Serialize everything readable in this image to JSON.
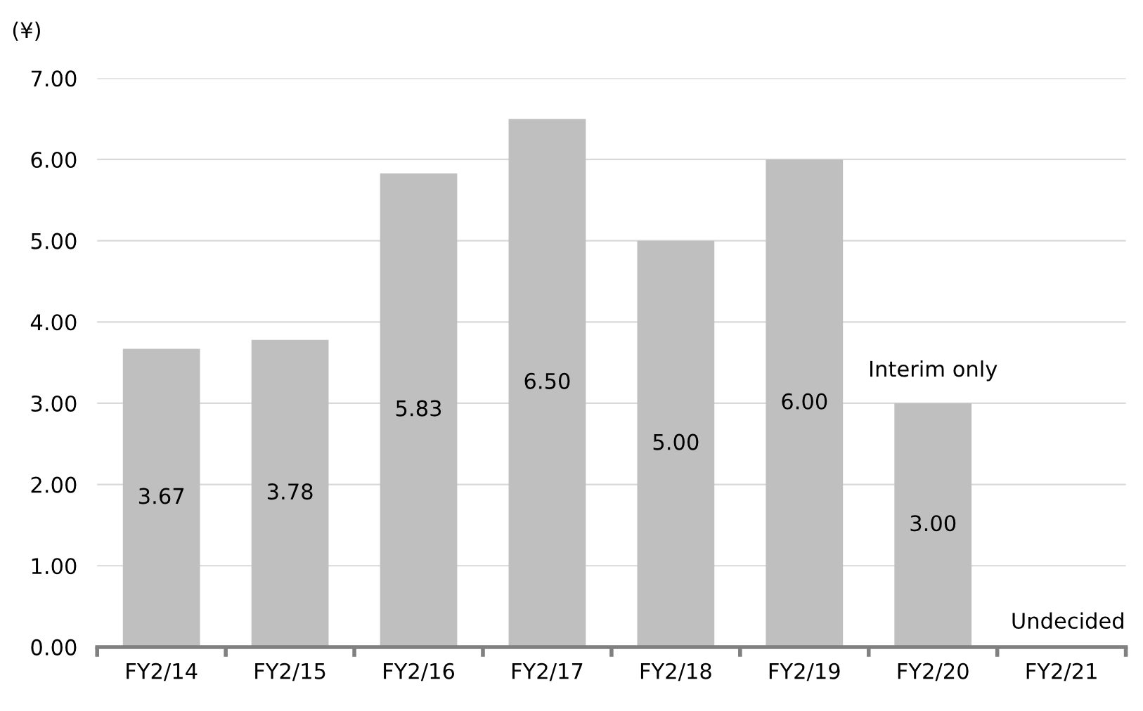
{
  "chart_data": {
    "type": "bar",
    "ylabel": "(¥)",
    "categories": [
      "FY2/14",
      "FY2/15",
      "FY2/16",
      "FY2/17",
      "FY2/18",
      "FY2/19",
      "FY2/20",
      "FY2/21"
    ],
    "values": [
      3.67,
      3.78,
      5.83,
      6.5,
      5.0,
      6.0,
      3.0,
      null
    ],
    "value_labels": [
      "3.67",
      "3.78",
      "5.83",
      "6.50",
      "5.00",
      "6.00",
      "3.00",
      null
    ],
    "color": "#bfbfbf",
    "ylim": [
      0,
      7
    ],
    "yticks": [
      {
        "value": 0,
        "label": "0.00"
      },
      {
        "value": 1,
        "label": "1.00"
      },
      {
        "value": 2,
        "label": "2.00"
      },
      {
        "value": 3,
        "label": "3.00"
      },
      {
        "value": 4,
        "label": "4.00"
      },
      {
        "value": 5,
        "label": "5.00"
      },
      {
        "value": 6,
        "label": "6.00"
      },
      {
        "value": 7,
        "label": "7.00"
      }
    ],
    "grid": "y",
    "annotations": [
      "Interim only",
      "Undecided"
    ]
  }
}
